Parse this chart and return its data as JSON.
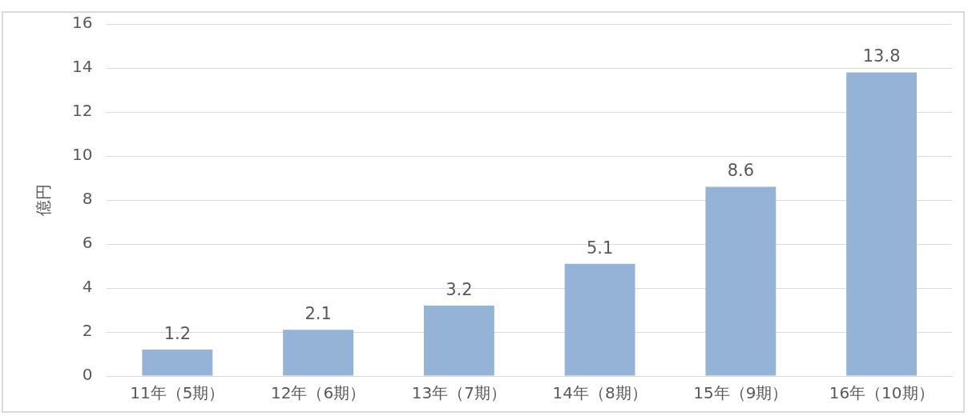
{
  "chart_data": {
    "type": "bar",
    "ylabel": "億円",
    "categories": [
      "11年（5期）",
      "12年（6期）",
      "13年（7期）",
      "14年（8期）",
      "15年（9期）",
      "16年（10期）"
    ],
    "values": [
      1.2,
      2.1,
      3.2,
      5.1,
      8.6,
      13.8
    ],
    "color": "#95b3d7",
    "ylim": [
      0,
      16
    ],
    "yticks": [
      0,
      2,
      4,
      6,
      8,
      10,
      12,
      14,
      16
    ],
    "grid": "y",
    "data_labels": true,
    "legend": false
  }
}
